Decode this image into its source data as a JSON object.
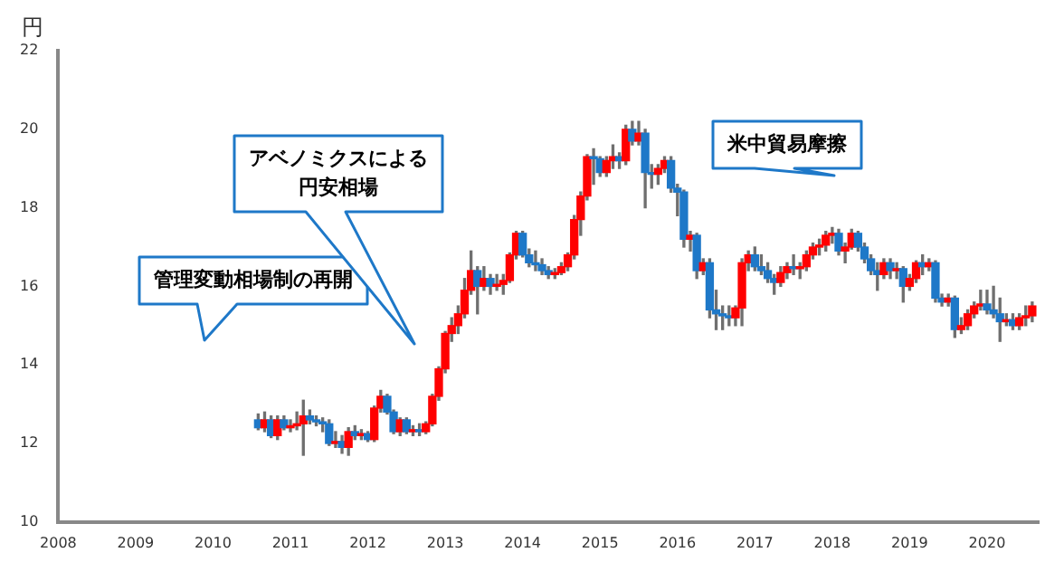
{
  "chart_data": {
    "type": "candlestick",
    "ylabel": "円",
    "x": [
      "2010-08",
      "2010-09",
      "2010-10",
      "2010-11",
      "2010-12",
      "2011-01",
      "2011-02",
      "2011-03",
      "2011-04",
      "2011-05",
      "2011-06",
      "2011-07",
      "2011-08",
      "2011-09",
      "2011-10",
      "2011-11",
      "2011-12",
      "2012-01",
      "2012-02",
      "2012-03",
      "2012-04",
      "2012-05",
      "2012-06",
      "2012-07",
      "2012-08",
      "2012-09",
      "2012-10",
      "2012-11",
      "2012-12",
      "2013-01",
      "2013-02",
      "2013-03",
      "2013-04",
      "2013-05",
      "2013-06",
      "2013-07",
      "2013-08",
      "2013-09",
      "2013-10",
      "2013-11",
      "2013-12",
      "2014-01",
      "2014-02",
      "2014-03",
      "2014-04",
      "2014-05",
      "2014-06",
      "2014-07",
      "2014-08",
      "2014-09",
      "2014-10",
      "2014-11",
      "2014-12",
      "2015-01",
      "2015-02",
      "2015-03",
      "2015-04",
      "2015-05",
      "2015-06",
      "2015-07",
      "2015-08",
      "2015-09",
      "2015-10",
      "2015-11",
      "2015-12",
      "2016-01",
      "2016-02",
      "2016-03",
      "2016-04",
      "2016-05",
      "2016-06",
      "2016-07",
      "2016-08",
      "2016-09",
      "2016-10",
      "2016-11",
      "2016-12",
      "2017-01",
      "2017-02",
      "2017-03",
      "2017-04",
      "2017-05",
      "2017-06",
      "2017-07",
      "2017-08",
      "2017-09",
      "2017-10",
      "2017-11",
      "2017-12",
      "2018-01",
      "2018-02",
      "2018-03",
      "2018-04",
      "2018-05",
      "2018-06",
      "2018-07",
      "2018-08",
      "2018-09",
      "2018-10",
      "2018-11",
      "2018-12",
      "2019-01",
      "2019-02",
      "2019-03",
      "2019-04",
      "2019-05",
      "2019-06",
      "2019-07",
      "2019-08",
      "2019-09",
      "2019-10",
      "2019-11",
      "2019-12",
      "2020-01",
      "2020-02",
      "2020-03",
      "2020-04",
      "2020-05",
      "2020-06",
      "2020-07",
      "2020-08"
    ],
    "ohlc": [
      [
        12.6,
        12.75,
        12.35,
        12.4
      ],
      [
        12.4,
        12.8,
        12.3,
        12.6
      ],
      [
        12.6,
        12.7,
        12.15,
        12.2
      ],
      [
        12.2,
        12.7,
        12.1,
        12.6
      ],
      [
        12.6,
        12.7,
        12.35,
        12.4
      ],
      [
        12.4,
        12.6,
        12.3,
        12.45
      ],
      [
        12.45,
        12.8,
        12.35,
        12.5
      ],
      [
        12.5,
        13.1,
        11.7,
        12.7
      ],
      [
        12.7,
        12.85,
        12.5,
        12.6
      ],
      [
        12.6,
        12.7,
        12.45,
        12.55
      ],
      [
        12.55,
        12.65,
        12.3,
        12.5
      ],
      [
        12.5,
        12.6,
        11.95,
        12.0
      ],
      [
        12.0,
        12.3,
        11.9,
        12.05
      ],
      [
        12.05,
        12.2,
        11.75,
        11.9
      ],
      [
        11.9,
        12.4,
        11.7,
        12.3
      ],
      [
        12.3,
        12.45,
        12.1,
        12.2
      ],
      [
        12.2,
        12.35,
        12.1,
        12.25
      ],
      [
        12.25,
        12.3,
        12.05,
        12.1
      ],
      [
        12.1,
        12.95,
        12.05,
        12.9
      ],
      [
        12.9,
        13.35,
        12.8,
        13.2
      ],
      [
        13.2,
        13.25,
        12.75,
        12.8
      ],
      [
        12.8,
        12.85,
        12.25,
        12.3
      ],
      [
        12.3,
        12.65,
        12.2,
        12.6
      ],
      [
        12.6,
        12.65,
        12.25,
        12.3
      ],
      [
        12.3,
        12.45,
        12.2,
        12.35
      ],
      [
        12.35,
        12.5,
        12.2,
        12.3
      ],
      [
        12.3,
        12.55,
        12.25,
        12.5
      ],
      [
        12.5,
        13.25,
        12.45,
        13.2
      ],
      [
        13.2,
        13.95,
        13.1,
        13.9
      ],
      [
        13.9,
        14.85,
        13.8,
        14.8
      ],
      [
        14.8,
        15.2,
        14.6,
        15.0
      ],
      [
        15.0,
        15.5,
        14.8,
        15.3
      ],
      [
        15.3,
        16.2,
        15.2,
        15.9
      ],
      [
        15.9,
        16.9,
        15.8,
        16.4
      ],
      [
        16.4,
        16.5,
        15.3,
        16.0
      ],
      [
        16.0,
        16.5,
        15.9,
        16.2
      ],
      [
        16.2,
        16.3,
        15.8,
        16.0
      ],
      [
        16.0,
        16.3,
        15.9,
        16.05
      ],
      [
        16.05,
        16.3,
        15.8,
        16.15
      ],
      [
        16.15,
        16.85,
        16.1,
        16.8
      ],
      [
        16.8,
        17.4,
        16.7,
        17.35
      ],
      [
        17.35,
        17.4,
        16.75,
        16.8
      ],
      [
        16.8,
        16.95,
        16.5,
        16.6
      ],
      [
        16.6,
        16.9,
        16.4,
        16.55
      ],
      [
        16.55,
        16.7,
        16.3,
        16.4
      ],
      [
        16.4,
        16.5,
        16.2,
        16.3
      ],
      [
        16.3,
        16.45,
        16.2,
        16.35
      ],
      [
        16.35,
        16.6,
        16.3,
        16.5
      ],
      [
        16.5,
        16.85,
        16.4,
        16.8
      ],
      [
        16.8,
        17.8,
        16.7,
        17.7
      ],
      [
        17.7,
        18.4,
        17.3,
        18.3
      ],
      [
        18.3,
        19.35,
        18.2,
        19.3
      ],
      [
        19.3,
        19.5,
        18.6,
        19.25
      ],
      [
        19.25,
        19.3,
        18.8,
        18.9
      ],
      [
        18.9,
        19.3,
        18.8,
        19.2
      ],
      [
        19.2,
        19.6,
        19.0,
        19.3
      ],
      [
        19.3,
        19.4,
        19.0,
        19.2
      ],
      [
        19.2,
        20.1,
        19.1,
        20.0
      ],
      [
        20.0,
        20.2,
        19.6,
        19.7
      ],
      [
        19.7,
        20.2,
        19.6,
        19.9
      ],
      [
        19.9,
        20.0,
        18.0,
        18.9
      ],
      [
        18.9,
        19.1,
        18.5,
        18.85
      ],
      [
        18.85,
        19.1,
        18.6,
        19.0
      ],
      [
        19.0,
        19.3,
        18.9,
        19.2
      ],
      [
        19.2,
        19.3,
        18.4,
        18.5
      ],
      [
        18.5,
        18.6,
        17.8,
        18.4
      ],
      [
        18.4,
        18.45,
        17.0,
        17.2
      ],
      [
        17.2,
        17.4,
        16.9,
        17.3
      ],
      [
        17.3,
        17.35,
        16.2,
        16.4
      ],
      [
        16.4,
        16.7,
        16.3,
        16.6
      ],
      [
        16.6,
        16.7,
        15.2,
        15.4
      ],
      [
        15.4,
        15.9,
        14.9,
        15.3
      ],
      [
        15.3,
        15.5,
        14.9,
        15.25
      ],
      [
        15.25,
        15.5,
        15.0,
        15.2
      ],
      [
        15.2,
        15.5,
        15.0,
        15.45
      ],
      [
        15.45,
        16.7,
        15.0,
        16.6
      ],
      [
        16.6,
        16.9,
        16.4,
        16.8
      ],
      [
        16.8,
        17.0,
        16.4,
        16.5
      ],
      [
        16.5,
        16.8,
        16.3,
        16.4
      ],
      [
        16.4,
        16.6,
        16.1,
        16.2
      ],
      [
        16.2,
        16.3,
        15.8,
        16.1
      ],
      [
        16.1,
        16.5,
        16.0,
        16.35
      ],
      [
        16.35,
        16.6,
        16.2,
        16.5
      ],
      [
        16.5,
        16.8,
        16.3,
        16.45
      ],
      [
        16.45,
        16.6,
        16.2,
        16.5
      ],
      [
        16.5,
        16.9,
        16.4,
        16.8
      ],
      [
        16.8,
        17.1,
        16.7,
        17.0
      ],
      [
        17.0,
        17.2,
        16.8,
        17.05
      ],
      [
        17.05,
        17.4,
        16.9,
        17.3
      ],
      [
        17.3,
        17.5,
        17.1,
        17.35
      ],
      [
        17.35,
        17.45,
        16.8,
        16.9
      ],
      [
        16.9,
        17.1,
        16.6,
        17.0
      ],
      [
        17.0,
        17.45,
        16.95,
        17.35
      ],
      [
        17.35,
        17.4,
        16.9,
        17.0
      ],
      [
        17.0,
        17.1,
        16.6,
        16.7
      ],
      [
        16.7,
        16.8,
        16.3,
        16.4
      ],
      [
        16.4,
        16.6,
        15.9,
        16.3
      ],
      [
        16.3,
        16.7,
        16.2,
        16.6
      ],
      [
        16.6,
        16.7,
        16.2,
        16.4
      ],
      [
        16.4,
        16.6,
        16.2,
        16.45
      ],
      [
        16.45,
        16.5,
        15.6,
        16.0
      ],
      [
        16.0,
        16.3,
        15.9,
        16.2
      ],
      [
        16.2,
        16.65,
        16.1,
        16.6
      ],
      [
        16.6,
        16.8,
        16.3,
        16.5
      ],
      [
        16.5,
        16.7,
        16.4,
        16.6
      ],
      [
        16.6,
        16.65,
        15.6,
        15.7
      ],
      [
        15.7,
        15.8,
        15.5,
        15.6
      ],
      [
        15.6,
        15.8,
        15.5,
        15.7
      ],
      [
        15.7,
        15.75,
        14.7,
        14.9
      ],
      [
        14.9,
        15.2,
        14.8,
        15.0
      ],
      [
        15.0,
        15.4,
        14.9,
        15.3
      ],
      [
        15.3,
        15.6,
        15.2,
        15.5
      ],
      [
        15.5,
        15.9,
        15.4,
        15.55
      ],
      [
        15.55,
        15.9,
        15.3,
        15.4
      ],
      [
        15.4,
        16.0,
        15.2,
        15.3
      ],
      [
        15.3,
        15.7,
        14.6,
        15.1
      ],
      [
        15.1,
        15.3,
        15.0,
        15.15
      ],
      [
        15.15,
        15.3,
        14.9,
        15.0
      ],
      [
        15.0,
        15.3,
        14.9,
        15.2
      ],
      [
        15.2,
        15.5,
        15.0,
        15.25
      ],
      [
        15.25,
        15.6,
        15.1,
        15.5
      ]
    ],
    "colors": [
      "#1e78c8",
      "#ff0000",
      "#1e78c8",
      "#ff0000",
      "#1e78c8",
      "#ff0000",
      "#ff0000",
      "#ff0000",
      "#1e78c8",
      "#1e78c8",
      "#1e78c8",
      "#1e78c8",
      "#ff0000",
      "#1e78c8",
      "#ff0000",
      "#1e78c8",
      "#ff0000",
      "#1e78c8",
      "#ff0000",
      "#ff0000",
      "#1e78c8",
      "#1e78c8",
      "#ff0000",
      "#1e78c8",
      "#ff0000",
      "#1e78c8",
      "#ff0000",
      "#ff0000",
      "#ff0000",
      "#ff0000",
      "#ff0000",
      "#ff0000",
      "#ff0000",
      "#ff0000",
      "#1e78c8",
      "#ff0000",
      "#1e78c8",
      "#ff0000",
      "#ff0000",
      "#ff0000",
      "#ff0000",
      "#1e78c8",
      "#1e78c8",
      "#1e78c8",
      "#1e78c8",
      "#1e78c8",
      "#ff0000",
      "#ff0000",
      "#ff0000",
      "#ff0000",
      "#ff0000",
      "#ff0000",
      "#1e78c8",
      "#1e78c8",
      "#ff0000",
      "#ff0000",
      "#1e78c8",
      "#ff0000",
      "#1e78c8",
      "#ff0000",
      "#1e78c8",
      "#1e78c8",
      "#ff0000",
      "#ff0000",
      "#1e78c8",
      "#1e78c8",
      "#1e78c8",
      "#ff0000",
      "#1e78c8",
      "#ff0000",
      "#1e78c8",
      "#1e78c8",
      "#1e78c8",
      "#1e78c8",
      "#ff0000",
      "#ff0000",
      "#ff0000",
      "#1e78c8",
      "#1e78c8",
      "#1e78c8",
      "#1e78c8",
      "#ff0000",
      "#ff0000",
      "#1e78c8",
      "#ff0000",
      "#ff0000",
      "#ff0000",
      "#ff0000",
      "#ff0000",
      "#ff0000",
      "#1e78c8",
      "#ff0000",
      "#ff0000",
      "#1e78c8",
      "#1e78c8",
      "#1e78c8",
      "#1e78c8",
      "#ff0000",
      "#1e78c8",
      "#ff0000",
      "#1e78c8",
      "#ff0000",
      "#ff0000",
      "#1e78c8",
      "#ff0000",
      "#1e78c8",
      "#1e78c8",
      "#ff0000",
      "#1e78c8",
      "#ff0000",
      "#ff0000",
      "#ff0000",
      "#ff0000",
      "#1e78c8",
      "#1e78c8",
      "#1e78c8",
      "#ff0000",
      "#1e78c8",
      "#ff0000",
      "#ff0000",
      "#ff0000"
    ],
    "xlim": [
      "2008",
      "2020-09"
    ],
    "xticks": [
      "2008",
      "2009",
      "2010",
      "2011",
      "2012",
      "2013",
      "2014",
      "2015",
      "2016",
      "2017",
      "2018",
      "2019",
      "2020"
    ],
    "ylim": [
      10,
      22
    ],
    "yticks": [
      10,
      12,
      14,
      16,
      18,
      20,
      22
    ],
    "grid": false,
    "legend": false,
    "annotations": [
      "管理変動相場制の再開",
      "アベノミクスによる円安相場",
      "米中貿易摩擦"
    ]
  }
}
